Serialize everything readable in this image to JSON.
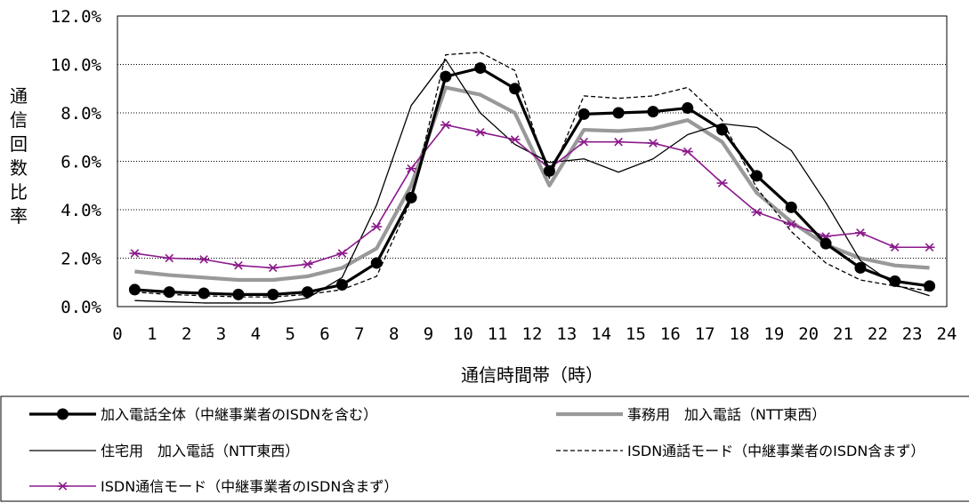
{
  "chart_data": {
    "type": "line",
    "xlabel": "通信時間帯（時）",
    "ylabel": "通信回数比率",
    "x_ticks": [
      "0",
      "1",
      "2",
      "3",
      "4",
      "5",
      "6",
      "7",
      "8",
      "9",
      "10",
      "11",
      "12",
      "13",
      "14",
      "15",
      "16",
      "17",
      "18",
      "19",
      "20",
      "21",
      "22",
      "23",
      "24"
    ],
    "y_ticks": [
      "0.0%",
      "2.0%",
      "4.0%",
      "6.0%",
      "8.0%",
      "10.0%",
      "12.0%"
    ],
    "xlim": [
      0,
      24
    ],
    "ylim": [
      0,
      12
    ],
    "grid": "horizontal-dotted",
    "legend_position": "bottom",
    "x": [
      0.5,
      1.5,
      2.5,
      3.5,
      4.5,
      5.5,
      6.5,
      7.5,
      8.5,
      9.5,
      10.5,
      11.5,
      12.5,
      13.5,
      14.5,
      15.5,
      16.5,
      17.5,
      18.5,
      19.5,
      20.5,
      21.5,
      22.5,
      23.5
    ],
    "series": [
      {
        "name": "加入電話全体（中継事業者のISDNを含む）",
        "color": "#000000",
        "style": "thick-marker-circle",
        "values": [
          0.7,
          0.6,
          0.55,
          0.5,
          0.5,
          0.6,
          0.9,
          1.8,
          4.5,
          9.5,
          9.85,
          9.0,
          5.6,
          7.95,
          8.0,
          8.05,
          8.2,
          7.3,
          5.4,
          4.1,
          2.6,
          1.6,
          1.05,
          0.85
        ]
      },
      {
        "name": "事務用　加入電話（NTT東西）",
        "color": "#999999",
        "style": "thick-gray",
        "values": [
          1.45,
          1.3,
          1.2,
          1.1,
          1.1,
          1.25,
          1.6,
          2.4,
          5.0,
          9.05,
          8.75,
          8.0,
          5.0,
          7.3,
          7.25,
          7.35,
          7.7,
          6.8,
          4.7,
          3.5,
          2.55,
          2.0,
          1.7,
          1.6
        ]
      },
      {
        "name": "住宅用　加入電話（NTT東西）",
        "color": "#000000",
        "style": "thin",
        "values": [
          0.25,
          0.2,
          0.15,
          0.15,
          0.15,
          0.35,
          1.2,
          4.2,
          8.3,
          10.2,
          8.0,
          6.7,
          5.95,
          6.1,
          5.55,
          6.1,
          7.1,
          7.55,
          7.4,
          6.45,
          4.3,
          1.9,
          0.9,
          0.45
        ]
      },
      {
        "name": "ISDN通話モード（中継事業者のISDN含まず）",
        "color": "#000000",
        "style": "dashed",
        "values": [
          0.6,
          0.5,
          0.45,
          0.4,
          0.4,
          0.5,
          0.7,
          1.25,
          4.4,
          10.4,
          10.5,
          9.75,
          5.3,
          8.7,
          8.6,
          8.7,
          9.05,
          7.7,
          4.9,
          3.1,
          1.8,
          1.1,
          0.85,
          0.65
        ]
      },
      {
        "name": "ISDN通信モード（中継事業者のISDN含まず）",
        "color": "#8b1a8b",
        "style": "marker-star",
        "values": [
          2.2,
          2.0,
          1.95,
          1.7,
          1.6,
          1.75,
          2.2,
          3.3,
          5.7,
          7.5,
          7.2,
          6.9,
          5.7,
          6.8,
          6.8,
          6.75,
          6.4,
          5.1,
          3.9,
          3.4,
          2.9,
          3.05,
          2.45,
          2.45
        ]
      }
    ]
  }
}
